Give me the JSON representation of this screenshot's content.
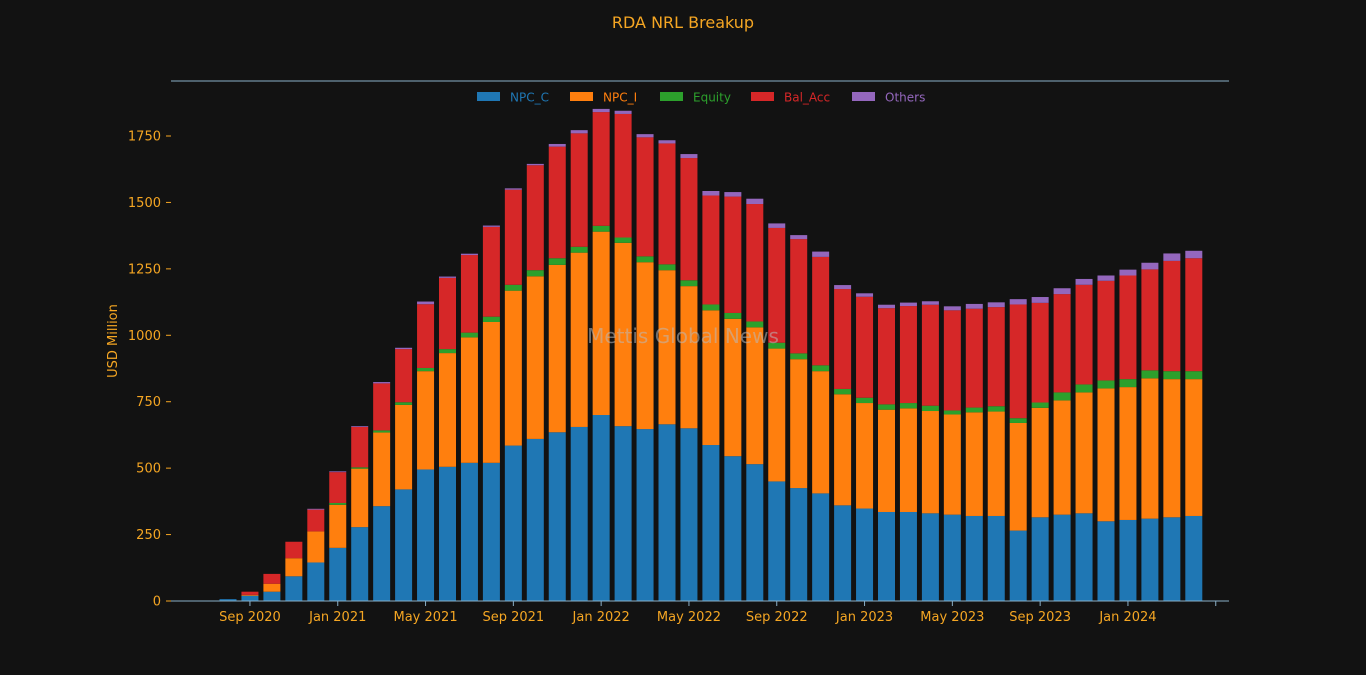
{
  "chart_data": {
    "type": "bar",
    "stacked": true,
    "title": "RDA NRL Breakup",
    "ylabel": "USD Million",
    "xlabel": "",
    "ylim": [
      0,
      1900
    ],
    "yticks": [
      0,
      250,
      500,
      750,
      1000,
      1250,
      1500,
      1750
    ],
    "xticks": [
      "Sep 2020",
      "Jan 2021",
      "May 2021",
      "Sep 2021",
      "Jan 2022",
      "May 2022",
      "Sep 2022",
      "Jan 2023",
      "May 2023",
      "Sep 2023",
      "Jan 2024"
    ],
    "grid": false,
    "legend_position": "top-center",
    "watermark": "Mettis Global News",
    "colors": {
      "background": "#121212",
      "text": "#f5a623",
      "axis": "#8ab0c8",
      "watermark": "#b9b9b9"
    },
    "categories": [
      "Aug 2020",
      "Sep 2020",
      "Oct 2020",
      "Nov 2020",
      "Dec 2020",
      "Jan 2021",
      "Feb 2021",
      "Mar 2021",
      "Apr 2021",
      "May 2021",
      "Jun 2021",
      "Jul 2021",
      "Aug 2021",
      "Sep 2021",
      "Oct 2021",
      "Nov 2021",
      "Dec 2021",
      "Jan 2022",
      "Feb 2022",
      "Mar 2022",
      "Apr 2022",
      "May 2022",
      "Jun 2022",
      "Jul 2022",
      "Aug 2022",
      "Sep 2022",
      "Oct 2022",
      "Nov 2022",
      "Dec 2022",
      "Jan 2023",
      "Feb 2023",
      "Mar 2023",
      "Apr 2023",
      "May 2023",
      "Jun 2023",
      "Jul 2023",
      "Aug 2023",
      "Sep 2023",
      "Oct 2023",
      "Nov 2023",
      "Dec 2023",
      "Jan 2024",
      "Feb 2024",
      "Mar 2024",
      "Apr 2024"
    ],
    "series": [
      {
        "name": "NPC_C",
        "color": "#1f77b4",
        "values": [
          7,
          20,
          35,
          93,
          145,
          200,
          278,
          357,
          420,
          495,
          505,
          520,
          520,
          585,
          610,
          635,
          655,
          700,
          658,
          647,
          665,
          650,
          587,
          545,
          515,
          450,
          425,
          405,
          360,
          348,
          335,
          335,
          330,
          325,
          320,
          320,
          265,
          315,
          325,
          330,
          300,
          305,
          310,
          315,
          320
        ]
      },
      {
        "name": "NPC_I",
        "color": "#ff7f0e",
        "values": [
          0,
          3,
          30,
          68,
          117,
          162,
          220,
          277,
          318,
          370,
          428,
          472,
          530,
          583,
          612,
          630,
          656,
          690,
          690,
          628,
          580,
          535,
          507,
          517,
          515,
          500,
          485,
          460,
          418,
          397,
          385,
          390,
          385,
          377,
          390,
          393,
          405,
          412,
          430,
          455,
          500,
          500,
          528,
          520,
          515
        ]
      },
      {
        "name": "Equity",
        "color": "#2ca02c",
        "values": [
          0,
          0,
          0,
          0,
          0,
          7,
          5,
          8,
          10,
          12,
          15,
          18,
          20,
          22,
          23,
          25,
          22,
          22,
          20,
          22,
          22,
          22,
          22,
          22,
          22,
          22,
          22,
          22,
          20,
          20,
          20,
          20,
          20,
          15,
          18,
          20,
          18,
          20,
          30,
          30,
          30,
          30,
          30,
          30,
          30
        ]
      },
      {
        "name": "Bal_Acc",
        "color": "#d62728",
        "values": [
          0,
          12,
          37,
          62,
          82,
          116,
          152,
          177,
          200,
          240,
          268,
          292,
          338,
          358,
          395,
          420,
          427,
          428,
          465,
          448,
          455,
          460,
          410,
          438,
          442,
          432,
          430,
          408,
          376,
          380,
          362,
          365,
          380,
          377,
          372,
          373,
          428,
          375,
          370,
          375,
          375,
          390,
          380,
          415,
          425
        ]
      },
      {
        "name": "Others",
        "color": "#9467bd",
        "values": [
          0,
          0,
          0,
          0,
          3,
          3,
          3,
          5,
          5,
          10,
          5,
          5,
          5,
          5,
          5,
          10,
          12,
          12,
          12,
          12,
          12,
          15,
          17,
          17,
          20,
          17,
          15,
          20,
          15,
          13,
          13,
          13,
          13,
          15,
          18,
          18,
          20,
          22,
          22,
          22,
          20,
          22,
          25,
          28,
          28
        ]
      }
    ]
  }
}
